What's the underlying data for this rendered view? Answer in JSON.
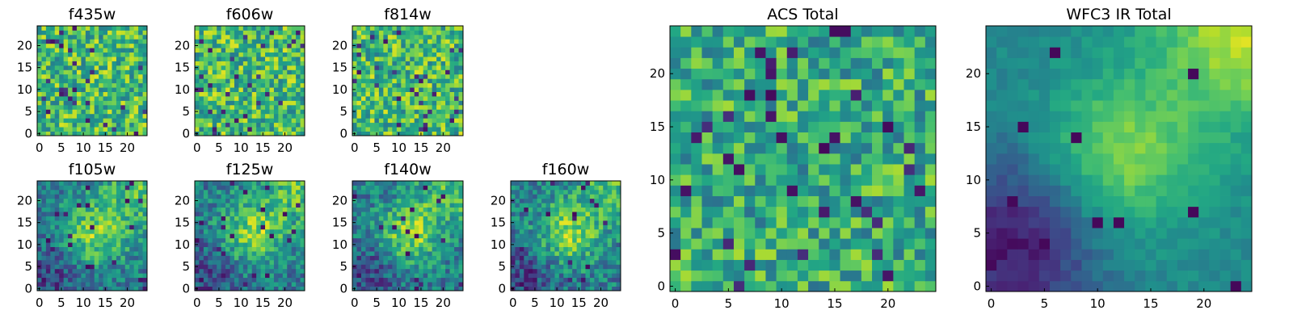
{
  "chart_data": [
    {
      "type": "heatmap",
      "title": "f435w",
      "seed": 11,
      "variant": "noise",
      "x_ticks": [
        "0",
        "5",
        "10",
        "15",
        "20"
      ],
      "y_ticks": [
        "0",
        "5",
        "10",
        "15",
        "20"
      ],
      "xlim": [
        0,
        25
      ],
      "ylim": [
        0,
        25
      ],
      "colormap": "viridis"
    },
    {
      "type": "heatmap",
      "title": "f606w",
      "seed": 23,
      "variant": "noise",
      "x_ticks": [
        "0",
        "5",
        "10",
        "15",
        "20"
      ],
      "y_ticks": [
        "0",
        "5",
        "10",
        "15",
        "20"
      ],
      "xlim": [
        0,
        25
      ],
      "ylim": [
        0,
        25
      ],
      "colormap": "viridis"
    },
    {
      "type": "heatmap",
      "title": "f814w",
      "seed": 37,
      "variant": "noise",
      "x_ticks": [
        "0",
        "5",
        "10",
        "15",
        "20"
      ],
      "y_ticks": [
        "0",
        "5",
        "10",
        "15",
        "20"
      ],
      "xlim": [
        0,
        25
      ],
      "ylim": [
        0,
        25
      ],
      "colormap": "viridis"
    },
    {
      "type": "heatmap",
      "title": "f105w",
      "seed": 41,
      "variant": "ir",
      "x_ticks": [
        "0",
        "5",
        "10",
        "15",
        "20"
      ],
      "y_ticks": [
        "0",
        "5",
        "10",
        "15",
        "20"
      ],
      "xlim": [
        0,
        25
      ],
      "ylim": [
        0,
        25
      ],
      "colormap": "viridis"
    },
    {
      "type": "heatmap",
      "title": "f125w",
      "seed": 53,
      "variant": "ir",
      "x_ticks": [
        "0",
        "5",
        "10",
        "15",
        "20"
      ],
      "y_ticks": [
        "0",
        "5",
        "10",
        "15",
        "20"
      ],
      "xlim": [
        0,
        25
      ],
      "ylim": [
        0,
        25
      ],
      "colormap": "viridis"
    },
    {
      "type": "heatmap",
      "title": "f140w",
      "seed": 67,
      "variant": "ir",
      "x_ticks": [
        "0",
        "5",
        "10",
        "15",
        "20"
      ],
      "y_ticks": [
        "0",
        "5",
        "10",
        "15",
        "20"
      ],
      "xlim": [
        0,
        25
      ],
      "ylim": [
        0,
        25
      ],
      "colormap": "viridis"
    },
    {
      "type": "heatmap",
      "title": "f160w",
      "seed": 79,
      "variant": "ir",
      "x_ticks": [
        "0",
        "5",
        "10",
        "15",
        "20"
      ],
      "y_ticks": [
        "0",
        "5",
        "10",
        "15",
        "20"
      ],
      "xlim": [
        0,
        25
      ],
      "ylim": [
        0,
        25
      ],
      "colormap": "viridis"
    },
    {
      "type": "heatmap",
      "title": "ACS Total",
      "seed": 97,
      "variant": "acs",
      "x_ticks": [
        "0",
        "5",
        "10",
        "15",
        "20"
      ],
      "y_ticks": [
        "0",
        "5",
        "10",
        "15",
        "20"
      ],
      "xlim": [
        0,
        25
      ],
      "ylim": [
        0,
        25
      ],
      "colormap": "viridis"
    },
    {
      "type": "heatmap",
      "title": "WFC3 IR Total",
      "seed": 131,
      "variant": "irtotal",
      "x_ticks": [
        "0",
        "5",
        "10",
        "15",
        "20"
      ],
      "y_ticks": [
        "0",
        "5",
        "10",
        "15",
        "20"
      ],
      "xlim": [
        0,
        25
      ],
      "ylim": [
        0,
        25
      ],
      "colormap": "viridis"
    }
  ]
}
